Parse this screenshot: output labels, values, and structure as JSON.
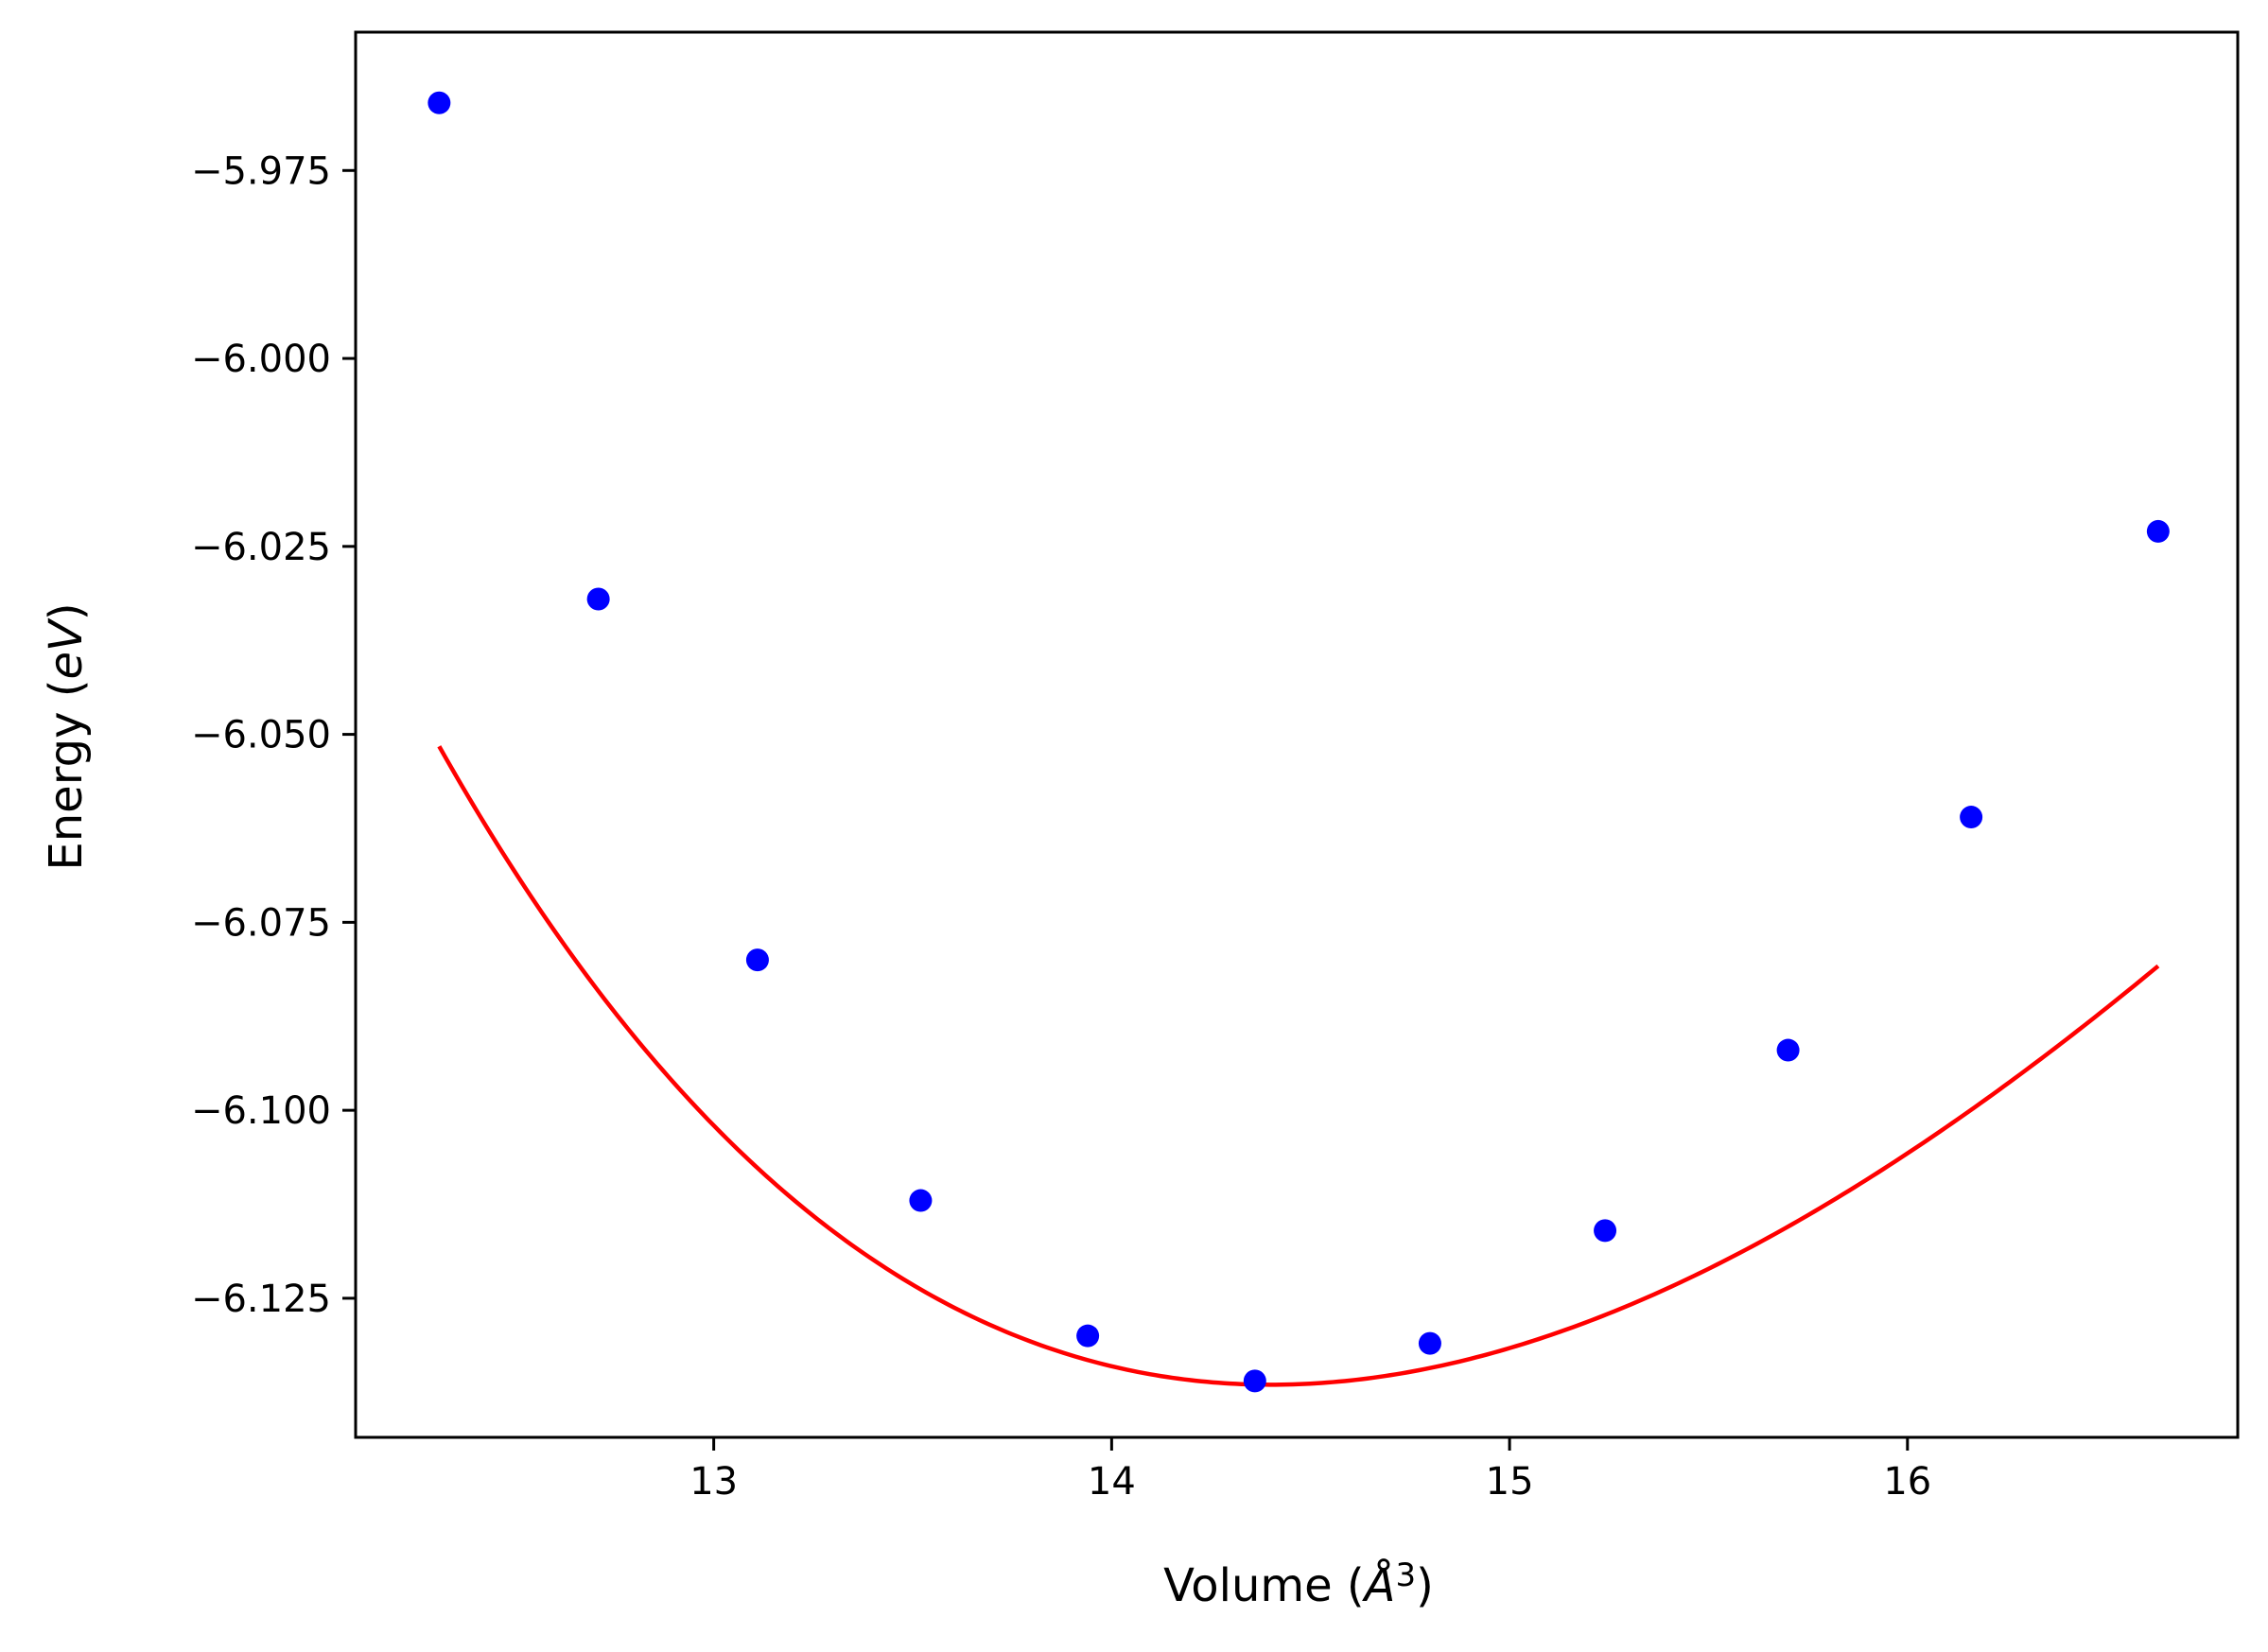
{
  "chart_data": {
    "type": "line",
    "xlabel": {
      "prefix": "Volume (",
      "symbol": "Å",
      "sup": "3",
      "suffix": ")"
    },
    "ylabel": {
      "prefix": "Energy (",
      "symbol": "eV",
      "suffix": ")"
    },
    "xlim": [
      12.1,
      16.83
    ],
    "ylim": [
      -6.1435,
      -5.9566
    ],
    "x_ticks": [
      13,
      14,
      15,
      16
    ],
    "x_tick_labels": [
      "13",
      "14",
      "15",
      "16"
    ],
    "y_ticks": [
      -5.975,
      -6.0,
      -6.025,
      -6.05,
      -6.075,
      -6.1,
      -6.125
    ],
    "y_tick_labels": [
      "−5.975",
      "−6.000",
      "−6.025",
      "−6.050",
      "−6.075",
      "−6.100",
      "−6.125"
    ],
    "grid": false,
    "series": [
      {
        "kind": "scatter",
        "color": "#0000ff",
        "marker": "circle",
        "points": [
          {
            "x": 12.31,
            "y": -5.966
          },
          {
            "x": 12.71,
            "y": -6.032
          },
          {
            "x": 13.11,
            "y": -6.08
          },
          {
            "x": 13.52,
            "y": -6.112
          },
          {
            "x": 13.94,
            "y": -6.13
          },
          {
            "x": 14.36,
            "y": -6.136
          },
          {
            "x": 14.8,
            "y": -6.131
          },
          {
            "x": 15.24,
            "y": -6.116
          },
          {
            "x": 15.7,
            "y": -6.092
          },
          {
            "x": 16.16,
            "y": -6.061
          },
          {
            "x": 16.63,
            "y": -6.023
          }
        ]
      },
      {
        "kind": "fit-curve",
        "color": "#ff0000",
        "x_range": [
          12.31,
          16.63
        ],
        "v0": 14.4,
        "e0": -6.1365,
        "b0": 0.42,
        "bp": 4.5
      }
    ]
  }
}
